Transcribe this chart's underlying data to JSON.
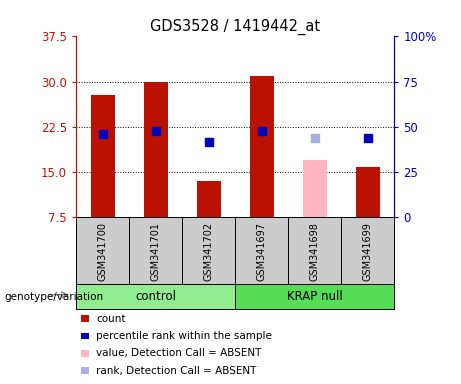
{
  "title": "GDS3528 / 1419442_at",
  "samples": [
    "GSM341700",
    "GSM341701",
    "GSM341702",
    "GSM341697",
    "GSM341698",
    "GSM341699"
  ],
  "count_values": [
    27.8,
    29.9,
    13.5,
    31.0,
    null,
    15.8
  ],
  "count_absent_values": [
    null,
    null,
    null,
    null,
    17.0,
    null
  ],
  "percentile_values": [
    46.0,
    47.5,
    41.5,
    47.5,
    null,
    43.5
  ],
  "percentile_absent_values": [
    null,
    null,
    null,
    null,
    43.5,
    null
  ],
  "ylim_left": [
    7.5,
    37.5
  ],
  "yticks_left": [
    7.5,
    15.0,
    22.5,
    30.0,
    37.5
  ],
  "ylim_right": [
    0,
    100
  ],
  "yticks_right": [
    0,
    25,
    50,
    75,
    100
  ],
  "ytick_labels_right": [
    "0",
    "25",
    "50",
    "75",
    "100%"
  ],
  "bar_color": "#bb1100",
  "bar_absent_color": "#ffb6c1",
  "dot_color": "#0000bb",
  "dot_absent_color": "#aab0dd",
  "bar_width": 0.45,
  "dot_size": 40,
  "bg_label": "#cccccc",
  "left_tick_color": "#cc1100",
  "right_tick_color": "#0000cc",
  "control_color": "#90ee90",
  "krap_color": "#55dd55",
  "legend_items": [
    {
      "label": "count",
      "color": "#bb1100"
    },
    {
      "label": "percentile rank within the sample",
      "color": "#0000bb"
    },
    {
      "label": "value, Detection Call = ABSENT",
      "color": "#ffb6c1"
    },
    {
      "label": "rank, Detection Call = ABSENT",
      "color": "#aab0dd"
    }
  ]
}
